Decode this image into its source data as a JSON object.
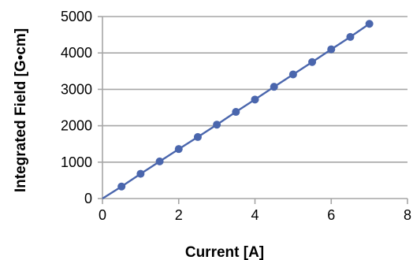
{
  "chart_data": {
    "type": "scatter",
    "title": "",
    "xlabel": "Current [A]",
    "ylabel": "Integrated Field [G•cm]",
    "xlim": [
      0,
      8
    ],
    "ylim": [
      0,
      5000
    ],
    "xticks": [
      0,
      2,
      4,
      6,
      8
    ],
    "yticks": [
      0,
      1000,
      2000,
      3000,
      4000,
      5000
    ],
    "grid": {
      "y": true,
      "x": false
    },
    "legend": "none",
    "series": [
      {
        "x": [
          0,
          0.5,
          1,
          1.5,
          2,
          2.5,
          3,
          3.5,
          4,
          4.5,
          5,
          5.5,
          6,
          6.5,
          7
        ],
        "y": [
          0,
          330,
          680,
          1020,
          1360,
          1690,
          2030,
          2380,
          2720,
          3070,
          3410,
          3750,
          4100,
          4440,
          4800
        ],
        "markers_from_index": 1,
        "line": true
      }
    ],
    "colors": {
      "series": "#4a66ad",
      "grid": "#a6a6a6",
      "axis": "#a6a6a6"
    }
  }
}
